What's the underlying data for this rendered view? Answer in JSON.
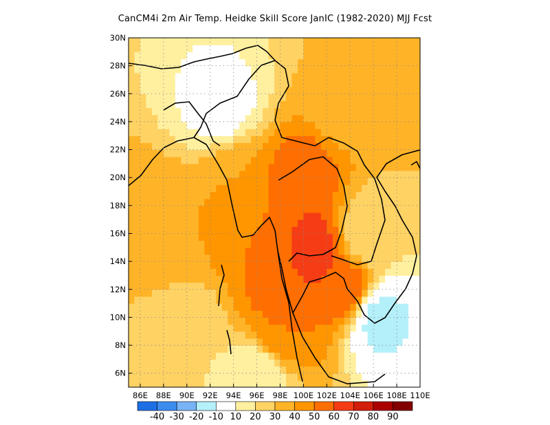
{
  "title": "CanCM4i  2m Air Temp. Heidke Skill Score JanIC (1982-2020) MJJ Fcst",
  "map": {
    "lon_range": [
      85,
      110
    ],
    "lat_range": [
      5,
      30
    ],
    "lon_ticks": [
      86,
      88,
      90,
      92,
      94,
      96,
      98,
      100,
      102,
      104,
      106,
      108,
      110
    ],
    "lat_ticks": [
      6,
      8,
      10,
      12,
      14,
      16,
      18,
      20,
      22,
      24,
      26,
      28,
      30
    ],
    "lon_labels": [
      "86E",
      "88E",
      "90E",
      "92E",
      "94E",
      "96E",
      "98E",
      "100E",
      "102E",
      "104E",
      "106E",
      "108E",
      "110E"
    ],
    "lat_labels": [
      "6N",
      "8N",
      "10N",
      "12N",
      "14N",
      "16N",
      "18N",
      "20N",
      "22N",
      "24N",
      "26N",
      "28N",
      "30N"
    ],
    "grid": "dotted",
    "coastlines": true
  },
  "colorbar": {
    "levels": [
      "-40",
      "-30",
      "-20",
      "-10",
      "10",
      "20",
      "30",
      "40",
      "50",
      "60",
      "70",
      "80",
      "90"
    ],
    "colors": [
      "#1e6fe6",
      "#3c8cf0",
      "#78b4f5",
      "#b4f0fa",
      "#ffffff",
      "#fff0a0",
      "#ffd264",
      "#ffb428",
      "#ff9600",
      "#ff6e00",
      "#f53c14",
      "#d21e0a",
      "#aa0000",
      "#820000"
    ]
  },
  "field": {
    "description_levels": "HSS percent",
    "blobs": [
      {
        "lon": 99.5,
        "lat": 19.5,
        "value": 60
      },
      {
        "lon": 101,
        "lat": 15,
        "value": 65
      },
      {
        "lon": 103.5,
        "lat": 12,
        "value": 60
      },
      {
        "lon": 98.5,
        "lat": 12,
        "value": 60
      },
      {
        "lon": 98,
        "lat": 9,
        "value": 50
      },
      {
        "lon": 96,
        "lat": 16,
        "value": 50
      },
      {
        "lon": 94.5,
        "lat": 20,
        "value": 40
      },
      {
        "lon": 88,
        "lat": 16,
        "value": 40
      },
      {
        "lon": 87,
        "lat": 12,
        "value": 30
      },
      {
        "lon": 90,
        "lat": 9,
        "value": 20
      },
      {
        "lon": 96,
        "lat": 6,
        "value": 10
      },
      {
        "lon": 93,
        "lat": 25,
        "value": 5
      },
      {
        "lon": 105.5,
        "lat": 16,
        "value": 20
      },
      {
        "lon": 106.5,
        "lat": 10,
        "value": -15
      },
      {
        "lon": 104,
        "lat": 26,
        "value": 30
      }
    ]
  }
}
